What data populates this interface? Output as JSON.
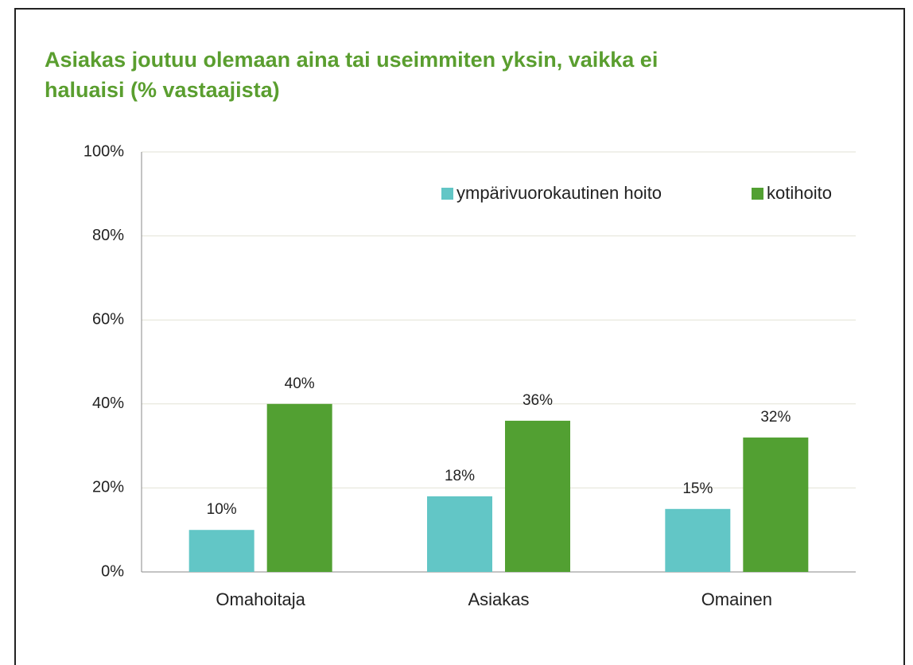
{
  "chart_data": {
    "type": "bar",
    "title": "Asiakas joutuu olemaan aina tai useimmiten yksin, vaikka ei haluaisi (% vastaajista)",
    "categories": [
      "Omahoitaja",
      "Asiakas",
      "Omainen"
    ],
    "series": [
      {
        "name": "ympärivuorokautinen hoito",
        "color": "#62c6c6",
        "values": [
          10,
          18,
          15
        ],
        "value_labels": [
          "10%",
          "18%",
          "15%"
        ]
      },
      {
        "name": "kotihoito",
        "color": "#52a032",
        "values": [
          40,
          36,
          32
        ],
        "value_labels": [
          "40%",
          "36%",
          "32%"
        ]
      }
    ],
    "ylim": [
      0,
      100
    ],
    "yticks": [
      {
        "value": 0,
        "label": "0%"
      },
      {
        "value": 20,
        "label": "20%"
      },
      {
        "value": 40,
        "label": "40%"
      },
      {
        "value": 60,
        "label": "60%"
      },
      {
        "value": 80,
        "label": "80%"
      },
      {
        "value": 100,
        "label": "100%"
      }
    ],
    "grid": true,
    "legend": "upper right"
  }
}
